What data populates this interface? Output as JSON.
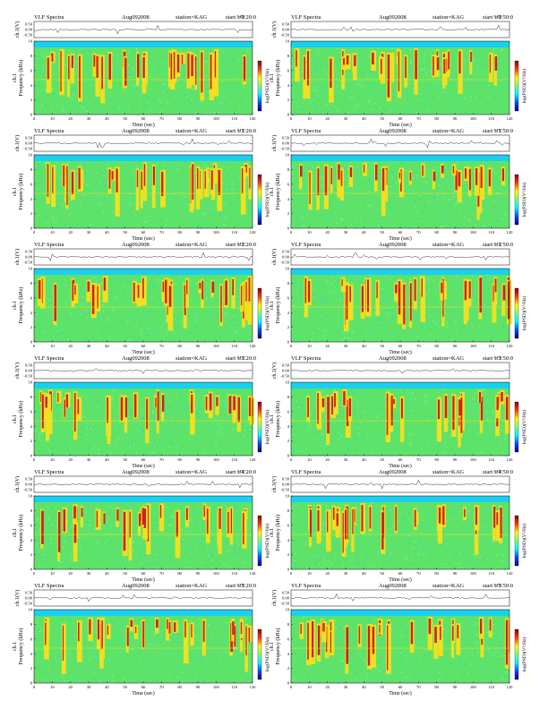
{
  "common": {
    "title": "VLF Spectra",
    "date": "Aug092008",
    "station": "station=KAG",
    "start_prefix": "start UT",
    "xlabel": "Time (sec)",
    "ylabel_channel": "ch.1",
    "ylabel": "Frequency (kHz)",
    "trace_label": "ch.1(V)",
    "colorbar_label": "log(PSD)(V²/Hz)"
  },
  "panels": [
    {
      "start_time": "=0:20:0"
    },
    {
      "start_time": "=0:50:0"
    },
    {
      "start_time": "=1:20:0"
    },
    {
      "start_time": "=1:50:0"
    },
    {
      "start_time": "=2:20:0"
    },
    {
      "start_time": "=2:50:0"
    },
    {
      "start_time": "=3:20:0"
    },
    {
      "start_time": "=3:50:0"
    },
    {
      "start_time": "=4:20:0"
    },
    {
      "start_time": "=4:50:0"
    },
    {
      "start_time": "=5:20:0"
    },
    {
      "start_time": "=5:50:0"
    }
  ],
  "chart_data": {
    "type": "heatmap",
    "layout": "6 rows x 2 columns of spectrogram panels",
    "x": {
      "label": "Time (sec)",
      "range": [
        0,
        120
      ],
      "ticks": [
        0,
        10,
        20,
        30,
        40,
        50,
        60,
        70,
        80,
        90,
        100,
        110,
        120
      ]
    },
    "y": {
      "label": "Frequency (kHz)",
      "range": [
        0,
        10
      ],
      "ticks": [
        0,
        2,
        4,
        6,
        8,
        10
      ]
    },
    "trace": {
      "label": "ch.1(V)",
      "ticks": [
        "0.50",
        "0.00",
        "-0.50"
      ]
    },
    "colorbar": {
      "label": "log(PSD)(V²/Hz)",
      "colors": [
        "#00008f",
        "#0050ff",
        "#00ffff",
        "#7fff7f",
        "#ffff00",
        "#ff4000",
        "#8b0000"
      ]
    },
    "palette": {
      "background": "#5ee36a",
      "high": "#d02020",
      "mid": "#f0e020",
      "low": "#1ad0f0"
    }
  }
}
